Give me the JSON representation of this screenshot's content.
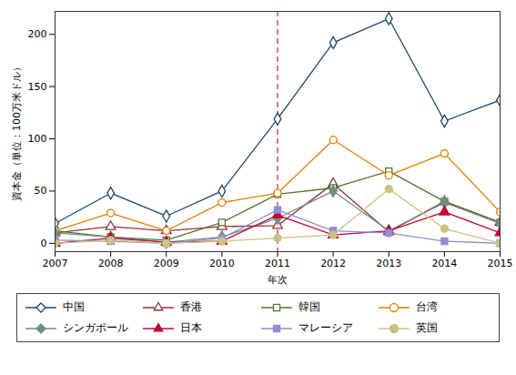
{
  "chart_data": {
    "type": "line",
    "x_label": "年次",
    "y_label": "資本金（単位：100万米ドル）",
    "x": [
      2007,
      2008,
      2009,
      2010,
      2011,
      2012,
      2013,
      2014,
      2015
    ],
    "xlim": [
      2007,
      2015
    ],
    "xticks": [
      2007,
      2008,
      2009,
      2010,
      2011,
      2012,
      2013,
      2014,
      2015
    ],
    "ylim": [
      -8,
      222
    ],
    "yticks": [
      0,
      50,
      100,
      150,
      200
    ],
    "grid": false,
    "legend": "bottom",
    "annotations": [
      {
        "x": 2011,
        "color": "#c0306a",
        "line_style": "dashed"
      }
    ],
    "series": [
      {
        "name": "中国",
        "color": "#1a476f",
        "marker": "diamond-open",
        "values": [
          19,
          48,
          26,
          50,
          119,
          192,
          215,
          117,
          137
        ]
      },
      {
        "name": "香港",
        "color": "#90353b",
        "marker": "triangle-open",
        "values": [
          10,
          16,
          12,
          16,
          17,
          57,
          11,
          40,
          20
        ]
      },
      {
        "name": "韓国",
        "color": "#55752f",
        "marker": "square-open",
        "values": [
          12,
          6,
          3,
          20,
          47,
          53,
          69,
          40,
          20
        ]
      },
      {
        "name": "台湾",
        "color": "#e37e00",
        "marker": "circle-open",
        "values": [
          12,
          29,
          12,
          39,
          48,
          99,
          65,
          86,
          30
        ]
      },
      {
        "name": "シンガポール",
        "color": "#6e8e84",
        "marker": "diamond",
        "values": [
          10,
          6,
          1,
          6,
          24,
          50,
          12,
          39,
          19
        ]
      },
      {
        "name": "日本",
        "color": "#c10534",
        "marker": "triangle",
        "values": [
          0,
          5,
          1,
          2,
          27,
          8,
          12,
          30,
          10
        ]
      },
      {
        "name": "マレーシア",
        "color": "#938dd2",
        "marker": "square",
        "values": [
          3,
          2,
          0,
          5,
          32,
          12,
          10,
          2,
          0
        ]
      },
      {
        "name": "英国",
        "color": "#cac27e",
        "marker": "circle",
        "values": [
          0,
          3,
          0,
          2,
          5,
          8,
          52,
          14,
          0
        ]
      }
    ]
  }
}
